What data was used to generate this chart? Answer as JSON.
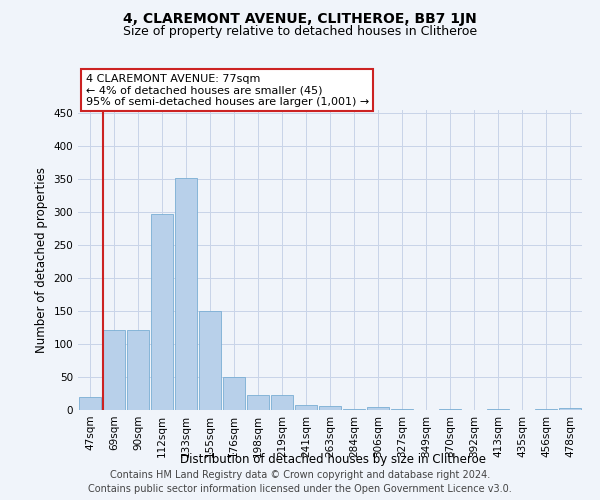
{
  "title": "4, CLAREMONT AVENUE, CLITHEROE, BB7 1JN",
  "subtitle": "Size of property relative to detached houses in Clitheroe",
  "xlabel": "Distribution of detached houses by size in Clitheroe",
  "ylabel": "Number of detached properties",
  "footer1": "Contains HM Land Registry data © Crown copyright and database right 2024.",
  "footer2": "Contains public sector information licensed under the Open Government Licence v3.0.",
  "categories": [
    "47sqm",
    "69sqm",
    "90sqm",
    "112sqm",
    "133sqm",
    "155sqm",
    "176sqm",
    "198sqm",
    "219sqm",
    "241sqm",
    "263sqm",
    "284sqm",
    "306sqm",
    "327sqm",
    "349sqm",
    "370sqm",
    "392sqm",
    "413sqm",
    "435sqm",
    "456sqm",
    "478sqm"
  ],
  "values": [
    20,
    121,
    121,
    298,
    352,
    150,
    50,
    22,
    22,
    8,
    6,
    1,
    5,
    1,
    0,
    1,
    0,
    2,
    0,
    1,
    3
  ],
  "bar_color": "#b8d0ea",
  "bar_edge_color": "#7aaed4",
  "highlight_color": "#cc2222",
  "annotation_text_line1": "4 CLAREMONT AVENUE: 77sqm",
  "annotation_text_line2": "← 4% of detached houses are smaller (45)",
  "annotation_text_line3": "95% of semi-detached houses are larger (1,001) →",
  "vline_x_index": 1,
  "ylim": [
    0,
    455
  ],
  "yticks": [
    0,
    50,
    100,
    150,
    200,
    250,
    300,
    350,
    400,
    450
  ],
  "background_color": "#f0f4fa",
  "grid_color": "#c8d4e8",
  "title_fontsize": 10,
  "subtitle_fontsize": 9,
  "axis_label_fontsize": 8.5,
  "tick_fontsize": 7.5,
  "annotation_fontsize": 8,
  "footer_fontsize": 7
}
